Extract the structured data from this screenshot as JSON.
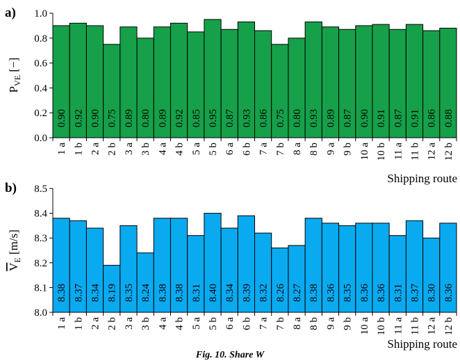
{
  "chart_data": [
    {
      "type": "bar",
      "panel_label": "a)",
      "ylabel": "P",
      "ylabel_sub": "VE",
      "ylabel_unit": "[−]",
      "xlabel": "Shipping route",
      "ylim": [
        0.0,
        1.0
      ],
      "yticks": [
        "0.0",
        "0.2",
        "0.4",
        "0.6",
        "0.8",
        "1.0"
      ],
      "ytick_values": [
        0.0,
        0.2,
        0.4,
        0.6,
        0.8,
        1.0
      ],
      "categories": [
        "1 a",
        "1 b",
        "2 a",
        "2 b",
        "3 a",
        "3 b",
        "4 a",
        "4 b",
        "5 a",
        "5 b",
        "6 a",
        "6 b",
        "7 a",
        "7 b",
        "8 a",
        "8 b",
        "9 a",
        "9 b",
        "10 a",
        "10 b",
        "11 a",
        "11 b",
        "12 a",
        "12 b"
      ],
      "values": [
        0.9,
        0.92,
        0.9,
        0.75,
        0.89,
        0.8,
        0.89,
        0.92,
        0.85,
        0.95,
        0.87,
        0.93,
        0.86,
        0.75,
        0.8,
        0.93,
        0.89,
        0.87,
        0.9,
        0.91,
        0.87,
        0.91,
        0.86,
        0.88
      ],
      "labels": [
        "0.90",
        "0.92",
        "0.90",
        "0.75",
        "0.89",
        "0.80",
        "0.89",
        "0.92",
        "0.85",
        "0.95",
        "0.87",
        "0.93",
        "0.86",
        "0.75",
        "0.80",
        "0.93",
        "0.89",
        "0.87",
        "0.90",
        "0.91",
        "0.87",
        "0.91",
        "0.86",
        "0.88"
      ],
      "bar_color": "#16a04a",
      "grid": false
    },
    {
      "type": "bar",
      "panel_label": "b)",
      "ylabel": "V",
      "ylabel_sub": "E",
      "ylabel_unit": "[m/s]",
      "ylabel_overbar": true,
      "xlabel": "Shipping route",
      "ylim": [
        8.0,
        8.5
      ],
      "yticks": [
        "8.0",
        "8.1",
        "8.2",
        "8.3",
        "8.4",
        "8.5"
      ],
      "ytick_values": [
        8.0,
        8.1,
        8.2,
        8.3,
        8.4,
        8.5
      ],
      "categories": [
        "1 a",
        "1 b",
        "2 a",
        "2 b",
        "3 a",
        "3 b",
        "4 a",
        "4 b",
        "5 a",
        "5 b",
        "6 a",
        "6 b",
        "7 a",
        "7 b",
        "8 a",
        "8 b",
        "9 a",
        "9 b",
        "10 a",
        "10 b",
        "11 a",
        "11 b",
        "12 a",
        "12 b"
      ],
      "values": [
        8.38,
        8.37,
        8.34,
        8.19,
        8.35,
        8.24,
        8.38,
        8.38,
        8.31,
        8.4,
        8.34,
        8.39,
        8.32,
        8.26,
        8.27,
        8.38,
        8.36,
        8.35,
        8.36,
        8.36,
        8.31,
        8.37,
        8.3,
        8.36
      ],
      "labels": [
        "8.38",
        "8.37",
        "8.34",
        "8.19",
        "8.35",
        "8.24",
        "8.38",
        "8.38",
        "8.31",
        "8.40",
        "8.34",
        "8.39",
        "8.32",
        "8.26",
        "8.27",
        "8.38",
        "8.36",
        "8.35",
        "8.36",
        "8.36",
        "8.31",
        "8.37",
        "8.30",
        "8.36"
      ],
      "bar_color": "#0aaaf0",
      "grid": false
    }
  ],
  "caption": "Fig. 10. Share W"
}
